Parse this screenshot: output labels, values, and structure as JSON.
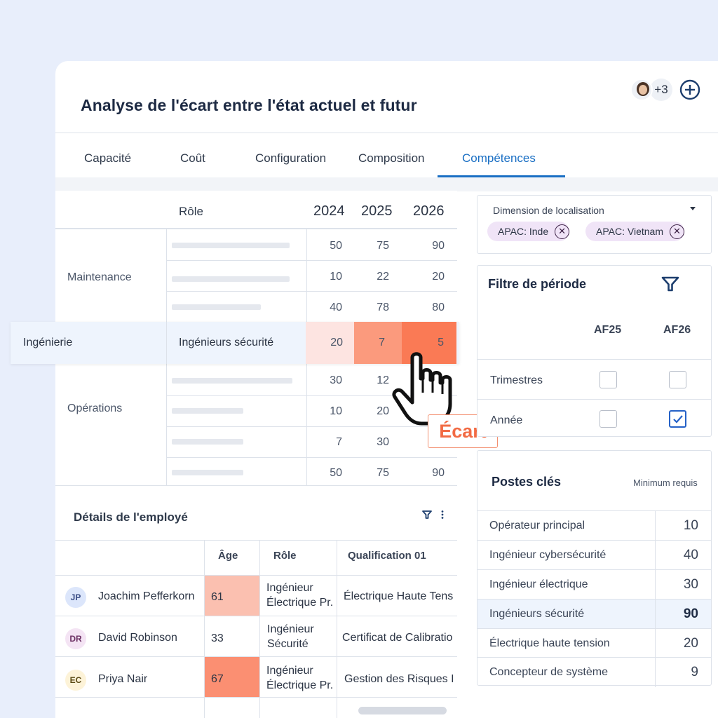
{
  "header": {
    "title": "Analyse de l'écart entre l'état actuel et futur",
    "more_count": "+3"
  },
  "tabs": [
    "Capacité",
    "Coût",
    "Configuration",
    "Composition",
    "Compétences"
  ],
  "active_tab": "Compétences",
  "matrix": {
    "role_header": "Rôle",
    "years": [
      "2024",
      "2025",
      "2026"
    ],
    "groups": {
      "maintenance": "Maintenance",
      "ingenierie": "Ingénierie",
      "operations": "Opérations"
    },
    "maintenance_rows": [
      [
        "50",
        "75",
        "90"
      ],
      [
        "10",
        "22",
        "20"
      ],
      [
        "40",
        "78",
        "80"
      ]
    ],
    "highlight_row": {
      "role": "Ingénieurs sécurité",
      "values": [
        "20",
        "7",
        "5"
      ]
    },
    "operations_rows": [
      [
        "30",
        "12",
        ""
      ],
      [
        "10",
        "20",
        ""
      ],
      [
        "7",
        "30",
        ""
      ],
      [
        "50",
        "75",
        "90"
      ]
    ],
    "gap_label": "Écart"
  },
  "employees": {
    "title": "Détails de l'employé",
    "columns": [
      "Âge",
      "Rôle",
      "Qualification 01"
    ],
    "rows": [
      {
        "initials": "JP",
        "name": "Joachim Pefferkorn",
        "age": "61",
        "role_l1": "Ingénieur",
        "role_l2": "Électrique Pr.",
        "qualification": "Électrique Haute Tens"
      },
      {
        "initials": "DR",
        "name": "David Robinson",
        "age": "33",
        "role_l1": "Ingénieur",
        "role_l2": "Sécurité",
        "qualification": "Certificat de Calibratio"
      },
      {
        "initials": "EC",
        "name": "Priya Nair",
        "age": "67",
        "role_l1": "Ingénieur",
        "role_l2": "Électrique Pr.",
        "qualification": "Gestion des Risques I"
      }
    ]
  },
  "location_filter": {
    "label": "Dimension de localisation",
    "chips": [
      {
        "region": "APAC:",
        "country": "Inde"
      },
      {
        "region": "APAC:",
        "country": "Vietnam"
      }
    ]
  },
  "period_filter": {
    "title": "Filtre de période",
    "columns": [
      "AF25",
      "AF26"
    ],
    "rows": [
      {
        "label": "Trimestres",
        "af25": false,
        "af26": false
      },
      {
        "label": "Année",
        "af25": false,
        "af26": true
      }
    ]
  },
  "key_positions": {
    "title": "Postes clés",
    "min_label": "Minimum requis",
    "rows": [
      {
        "name": "Opérateur principal",
        "value": "10"
      },
      {
        "name": "Ingénieur cybersécurité",
        "value": "40"
      },
      {
        "name": "Ingénieur électrique",
        "value": "30"
      },
      {
        "name": "Ingénieurs sécurité",
        "value": "90"
      },
      {
        "name": "Électrique haute tension",
        "value": "20"
      },
      {
        "name": "Concepteur de système",
        "value": "9"
      }
    ],
    "selected_index": 3
  },
  "colors": {
    "accent": "#1a6fc4",
    "heat_low": "#fde4e1",
    "heat_mid": "#fb9a7d",
    "heat_high": "#fa7a55",
    "age_mid": "#fbc0b0",
    "age_high": "#fb8f72"
  }
}
